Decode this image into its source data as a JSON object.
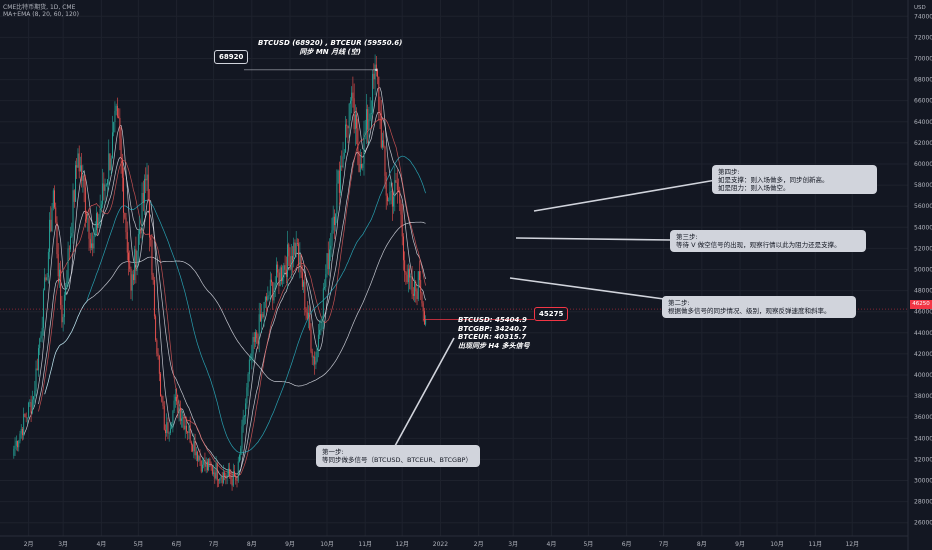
{
  "header": {
    "symbol_line": "CME比特币期货, 1D, CME",
    "indicator_line": "MA+EMA (8, 20, 60, 120)"
  },
  "axis": {
    "currency": "USD",
    "last_price": "46250"
  },
  "labels": {
    "peak_tag": "68920",
    "peak_title": "BTCUSD (68920) , BTCEUR (59550.6)",
    "peak_subtitle": "同步 MN 月线 (空)",
    "current_tag": "45275",
    "btcusd": "BTCUSD: 45404.9",
    "btcgbp": "BTCGBP: 34240.7",
    "btceur": "BTCEUR: 40315.7",
    "h4_signal": "出现同步 H4 多头信号"
  },
  "notes": {
    "step1": "第一步:\n等同步做多信号（BTCUSD、BTCEUR、BTCGBP）",
    "step2": "第二步:\n根据做多信号的同步情况、级别，观察反弹速度和斜率。",
    "step3": "第三步:\n等待 V 做空信号的出现，观察行情以此为阻力还是支撑。",
    "step4": "第四步:\n如是支撑：则入场做多，同步创新高。\n如是阻力：则入场做空。"
  },
  "colors": {
    "background": "#131722",
    "up_candle": "#26a69a",
    "down_candle": "#ef5350",
    "ma_white": "#e0e3eb",
    "ma_red": "#e05a5a",
    "ma_teal": "#2bb7c9",
    "note_bg": "#d1d4dc",
    "last_price": "#f23645"
  },
  "chart_data": {
    "type": "candlestick",
    "timeframe": "1D",
    "ylim": [
      25500,
      74500
    ],
    "y_ticks": [
      26000,
      28000,
      30000,
      32000,
      34000,
      36000,
      38000,
      40000,
      42000,
      44000,
      46000,
      48000,
      50000,
      52000,
      54000,
      56000,
      58000,
      60000,
      62000,
      64000,
      66000,
      68000,
      70000,
      72000,
      74000
    ],
    "x_ticks": [
      "2月",
      "3月",
      "4月",
      "5月",
      "6月",
      "7月",
      "8月",
      "9月",
      "10月",
      "11月",
      "12月",
      "2022",
      "2月",
      "3月",
      "4月",
      "5月",
      "6月",
      "7月",
      "8月",
      "9月",
      "10月",
      "11月",
      "12月"
    ],
    "close_path": [
      {
        "date": "2021-01-20",
        "close": 33000
      },
      {
        "date": "2021-02-05",
        "close": 38000
      },
      {
        "date": "2021-02-15",
        "close": 49000
      },
      {
        "date": "2021-02-21",
        "close": 57500
      },
      {
        "date": "2021-02-28",
        "close": 45000
      },
      {
        "date": "2021-03-13",
        "close": 61000
      },
      {
        "date": "2021-03-25",
        "close": 52000
      },
      {
        "date": "2021-04-14",
        "close": 64500
      },
      {
        "date": "2021-04-25",
        "close": 48000
      },
      {
        "date": "2021-05-08",
        "close": 59000
      },
      {
        "date": "2021-05-12",
        "close": 49500
      },
      {
        "date": "2021-05-19",
        "close": 38000
      },
      {
        "date": "2021-05-23",
        "close": 34500
      },
      {
        "date": "2021-06-01",
        "close": 37500
      },
      {
        "date": "2021-06-22",
        "close": 31500
      },
      {
        "date": "2021-07-20",
        "close": 30000
      },
      {
        "date": "2021-07-31",
        "close": 41500
      },
      {
        "date": "2021-08-14",
        "close": 47500
      },
      {
        "date": "2021-09-06",
        "close": 52500
      },
      {
        "date": "2021-09-21",
        "close": 41000
      },
      {
        "date": "2021-10-06",
        "close": 55000
      },
      {
        "date": "2021-10-20",
        "close": 66000
      },
      {
        "date": "2021-10-28",
        "close": 60000
      },
      {
        "date": "2021-11-10",
        "close": 68920
      },
      {
        "date": "2021-11-18",
        "close": 57000
      },
      {
        "date": "2021-11-28",
        "close": 57500
      },
      {
        "date": "2021-12-04",
        "close": 49500
      },
      {
        "date": "2021-12-10",
        "close": 47500
      },
      {
        "date": "2021-12-15",
        "close": 49000
      },
      {
        "date": "2021-12-20",
        "close": 45275
      }
    ],
    "annotations": [
      {
        "label": "68920",
        "date": "2021-11-10",
        "price": 68920
      },
      {
        "label": "45275",
        "date": "2021-12-20",
        "price": 45275
      }
    ]
  }
}
